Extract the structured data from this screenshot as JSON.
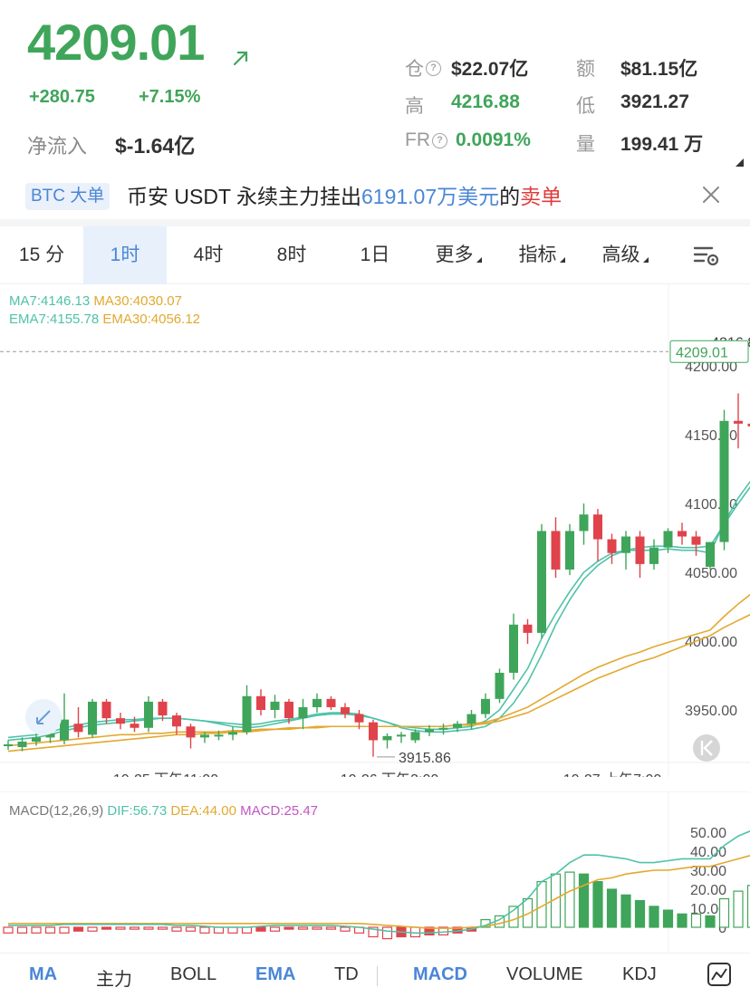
{
  "ticker": {
    "last_price": "4209.01",
    "change_abs": "+280.75",
    "change_pct": "+7.15%",
    "netflow_label": "净流入",
    "netflow_value": "$-1.64亿",
    "stats": {
      "oi_label": "仓",
      "oi_value": "$22.07亿",
      "amount_label": "额",
      "amount_value": "$81.15亿",
      "high_label": "高",
      "high_value": "4216.88",
      "low_label": "低",
      "low_value": "3921.27",
      "fr_label": "FR",
      "fr_value": "0.0091%",
      "vol_label": "量",
      "vol_value": "199.41 万"
    }
  },
  "notice": {
    "tag": "BTC 大单",
    "text_prefix": "币安 USDT 永续主力挂出",
    "text_amount": "6191.07万美元",
    "text_mid": "的",
    "text_side": "卖单"
  },
  "tabs": [
    {
      "label": "15 分",
      "active": false
    },
    {
      "label": "1时",
      "active": true
    },
    {
      "label": "4时",
      "active": false
    },
    {
      "label": "8时",
      "active": false
    },
    {
      "label": "1日",
      "active": false
    },
    {
      "label": "更多",
      "active": false
    },
    {
      "label": "指标",
      "active": false
    },
    {
      "label": "高级",
      "active": false
    }
  ],
  "indicators": {
    "ma7": "MA7:4146.13",
    "ma30": "MA30:4030.07",
    "ema7": "EMA7:4155.78",
    "ema30": "EMA30:4056.12",
    "macd_name": "MACD(12,26,9)",
    "dif": "DIF:56.73",
    "dea": "DEA:44.00",
    "macd": "MACD:25.47"
  },
  "colors": {
    "up": "#3fa55a",
    "down": "#e0434b",
    "accent": "#4a86d6",
    "ma_short": "#4fc2a8",
    "ma_long": "#e2a92f",
    "macd": "#c356c4"
  },
  "chart_data": {
    "type": "candlestick",
    "price_ticks": [
      "4200.00",
      "4150.00",
      "4100.00",
      "4050.00",
      "4000.00",
      "3950.00"
    ],
    "price_tick_values": [
      4200,
      4150,
      4100,
      4050,
      4000,
      3950
    ],
    "time_labels": [
      "10-25 下午11:00",
      "10-26 下午3:00",
      "10-27 上午7:00"
    ],
    "current_price": 4209.01,
    "current_price_label": "4209.01",
    "high_marker": 4216.88,
    "high_marker_label": "4216.88",
    "low_marker": 3915.86,
    "low_marker_label": "3915.86",
    "candles": [
      [
        3925,
        3928,
        3921,
        3925
      ],
      [
        3923,
        3930,
        3920,
        3927
      ],
      [
        3927,
        3933,
        3924,
        3930
      ],
      [
        3930,
        3935,
        3926,
        3933
      ],
      [
        3928,
        3962,
        3925,
        3943
      ],
      [
        3940,
        3952,
        3930,
        3934
      ],
      [
        3932,
        3958,
        3930,
        3956
      ],
      [
        3956,
        3958,
        3940,
        3944
      ],
      [
        3944,
        3948,
        3936,
        3940
      ],
      [
        3940,
        3945,
        3934,
        3937
      ],
      [
        3937,
        3960,
        3934,
        3956
      ],
      [
        3956,
        3958,
        3942,
        3946
      ],
      [
        3946,
        3948,
        3932,
        3938
      ],
      [
        3938,
        3940,
        3922,
        3930
      ],
      [
        3930,
        3934,
        3926,
        3932
      ],
      [
        3932,
        3935,
        3928,
        3932
      ],
      [
        3932,
        3938,
        3928,
        3934
      ],
      [
        3934,
        3968,
        3932,
        3960
      ],
      [
        3960,
        3965,
        3946,
        3950
      ],
      [
        3950,
        3961,
        3944,
        3956
      ],
      [
        3956,
        3958,
        3940,
        3944
      ],
      [
        3944,
        3958,
        3936,
        3952
      ],
      [
        3952,
        3962,
        3948,
        3958
      ],
      [
        3958,
        3960,
        3950,
        3952
      ],
      [
        3952,
        3955,
        3944,
        3947
      ],
      [
        3947,
        3950,
        3936,
        3941
      ],
      [
        3941,
        3943,
        3916,
        3928
      ],
      [
        3928,
        3933,
        3922,
        3931
      ],
      [
        3931,
        3934,
        3926,
        3932
      ],
      [
        3928,
        3936,
        3926,
        3934
      ],
      [
        3934,
        3939,
        3931,
        3936
      ],
      [
        3936,
        3940,
        3932,
        3937
      ],
      [
        3937,
        3942,
        3934,
        3940
      ],
      [
        3940,
        3950,
        3936,
        3947
      ],
      [
        3947,
        3962,
        3944,
        3958
      ],
      [
        3958,
        3980,
        3955,
        3977
      ],
      [
        3977,
        4020,
        3972,
        4012
      ],
      [
        4012,
        4016,
        3998,
        4006
      ],
      [
        4006,
        4085,
        4002,
        4080
      ],
      [
        4080,
        4090,
        4046,
        4052
      ],
      [
        4052,
        4085,
        4048,
        4080
      ],
      [
        4080,
        4100,
        4070,
        4092
      ],
      [
        4092,
        4096,
        4058,
        4074
      ],
      [
        4074,
        4078,
        4056,
        4064
      ],
      [
        4064,
        4080,
        4052,
        4076
      ],
      [
        4076,
        4080,
        4046,
        4056
      ],
      [
        4056,
        4074,
        4052,
        4068
      ],
      [
        4068,
        4082,
        4064,
        4080
      ],
      [
        4080,
        4086,
        4070,
        4076
      ],
      [
        4076,
        4080,
        4062,
        4070
      ],
      [
        4054,
        4070,
        4052,
        4072
      ],
      [
        4072,
        4168,
        4066,
        4160
      ],
      [
        4160,
        4180,
        4140,
        4158
      ],
      [
        4158,
        4176,
        4146,
        4156
      ],
      [
        4156,
        4178,
        4146,
        4170
      ],
      [
        4170,
        4200,
        4160,
        4188
      ],
      [
        4188,
        4217,
        4180,
        4209
      ]
    ],
    "ma_series": [
      {
        "name": "MA7",
        "color": "#4fc2a8",
        "values": [
          3928,
          3929,
          3930,
          3932,
          3935,
          3937,
          3939,
          3940,
          3941,
          3942,
          3943,
          3944,
          3944,
          3943,
          3942,
          3940,
          3938,
          3937,
          3938,
          3940,
          3942,
          3944,
          3946,
          3947,
          3947,
          3946,
          3944,
          3941,
          3937,
          3935,
          3934,
          3934,
          3935,
          3936,
          3938,
          3944,
          3955,
          3970,
          3990,
          4012,
          4030,
          4045,
          4055,
          4062,
          4066,
          4068,
          4069,
          4069,
          4068,
          4068,
          4069,
          4085,
          4100,
          4114,
          4128,
          4140,
          4146
        ]
      },
      {
        "name": "EMA7",
        "color": "#4fc2a8",
        "values": [
          3930,
          3931,
          3932,
          3934,
          3937,
          3939,
          3941,
          3942,
          3943,
          3943,
          3944,
          3944,
          3944,
          3943,
          3942,
          3941,
          3940,
          3939,
          3940,
          3942,
          3943,
          3945,
          3947,
          3948,
          3948,
          3947,
          3944,
          3941,
          3938,
          3937,
          3936,
          3936,
          3937,
          3938,
          3942,
          3950,
          3965,
          3980,
          4002,
          4020,
          4036,
          4050,
          4058,
          4064,
          4066,
          4066,
          4066,
          4067,
          4066,
          4066,
          4064,
          4086,
          4104,
          4118,
          4132,
          4146,
          4156
        ]
      },
      {
        "name": "MA30",
        "color": "#e2a92f",
        "values": [
          3920,
          3921,
          3922,
          3923,
          3924,
          3925,
          3926,
          3927,
          3928,
          3929,
          3930,
          3931,
          3932,
          3932,
          3933,
          3933,
          3934,
          3934,
          3935,
          3936,
          3936,
          3937,
          3937,
          3938,
          3938,
          3938,
          3938,
          3938,
          3938,
          3938,
          3938,
          3938,
          3939,
          3939,
          3940,
          3942,
          3945,
          3948,
          3953,
          3958,
          3963,
          3968,
          3973,
          3977,
          3981,
          3985,
          3988,
          3992,
          3996,
          4000,
          4004,
          4010,
          4015,
          4020,
          4024,
          4027,
          4030
        ]
      },
      {
        "name": "EMA30",
        "color": "#e2a92f",
        "values": [
          3924,
          3925,
          3926,
          3927,
          3928,
          3929,
          3930,
          3931,
          3932,
          3932,
          3933,
          3933,
          3934,
          3934,
          3934,
          3934,
          3935,
          3935,
          3936,
          3936,
          3937,
          3937,
          3938,
          3938,
          3938,
          3938,
          3938,
          3938,
          3938,
          3938,
          3938,
          3938,
          3939,
          3940,
          3941,
          3944,
          3948,
          3952,
          3958,
          3964,
          3970,
          3976,
          3981,
          3985,
          3989,
          3992,
          3996,
          3999,
          4002,
          4005,
          4008,
          4018,
          4027,
          4035,
          4043,
          4050,
          4056
        ]
      }
    ],
    "macd_ticks": [
      "50.00",
      "40.00",
      "30.00",
      "20.00",
      "10.00",
      "0"
    ],
    "macd_tick_values": [
      50,
      40,
      30,
      20,
      10,
      0
    ],
    "macd_dif": [
      1,
      1,
      1,
      1,
      1.5,
      1.5,
      1.5,
      1.5,
      1.5,
      1.5,
      1.5,
      1.5,
      1,
      1,
      0.5,
      0,
      0,
      0,
      0.5,
      1,
      1,
      1,
      1,
      1,
      0.5,
      0,
      -1,
      -2,
      -2.5,
      -3,
      -3,
      -2.5,
      -2,
      -1,
      1,
      4,
      9,
      15,
      24,
      28,
      34,
      38,
      38,
      37,
      36,
      34,
      34,
      35,
      36,
      36,
      36,
      43,
      48,
      51,
      54,
      55,
      56.73
    ],
    "macd_dea": [
      2,
      2,
      2,
      2,
      2,
      2,
      2,
      2,
      2,
      2,
      2,
      2,
      2,
      2,
      2,
      2,
      2,
      2,
      2,
      2,
      2,
      2,
      2,
      2,
      2,
      2,
      1.5,
      1,
      0.5,
      0,
      -0.5,
      -0.5,
      -0.5,
      0,
      0.5,
      2,
      4,
      7,
      11,
      15,
      19,
      22,
      25,
      26,
      28,
      29,
      30,
      30,
      31,
      32,
      32,
      34,
      36,
      38,
      40,
      42,
      44.0
    ],
    "macd_hist": [
      -3,
      -3,
      -3,
      -3,
      -3,
      -2,
      -2,
      -1,
      -1,
      -1,
      -1,
      -1,
      -2,
      -2,
      -3,
      -3,
      -3,
      -3,
      -2,
      -2,
      -1,
      -1,
      -1,
      -1,
      -2,
      -3,
      -5,
      -6,
      -5,
      -5,
      -4,
      -4,
      -3,
      -2,
      4,
      6,
      11,
      15,
      24,
      28,
      29,
      28,
      24,
      20,
      17,
      14,
      11,
      9,
      7,
      7,
      6,
      15,
      19,
      22,
      24,
      25,
      25.47
    ]
  },
  "bottom_tabs": {
    "ma": "MA",
    "main": "主力",
    "boll": "BOLL",
    "ema": "EMA",
    "td": "TD",
    "macd": "MACD",
    "volume": "VOLUME",
    "kdj": "KDJ"
  }
}
